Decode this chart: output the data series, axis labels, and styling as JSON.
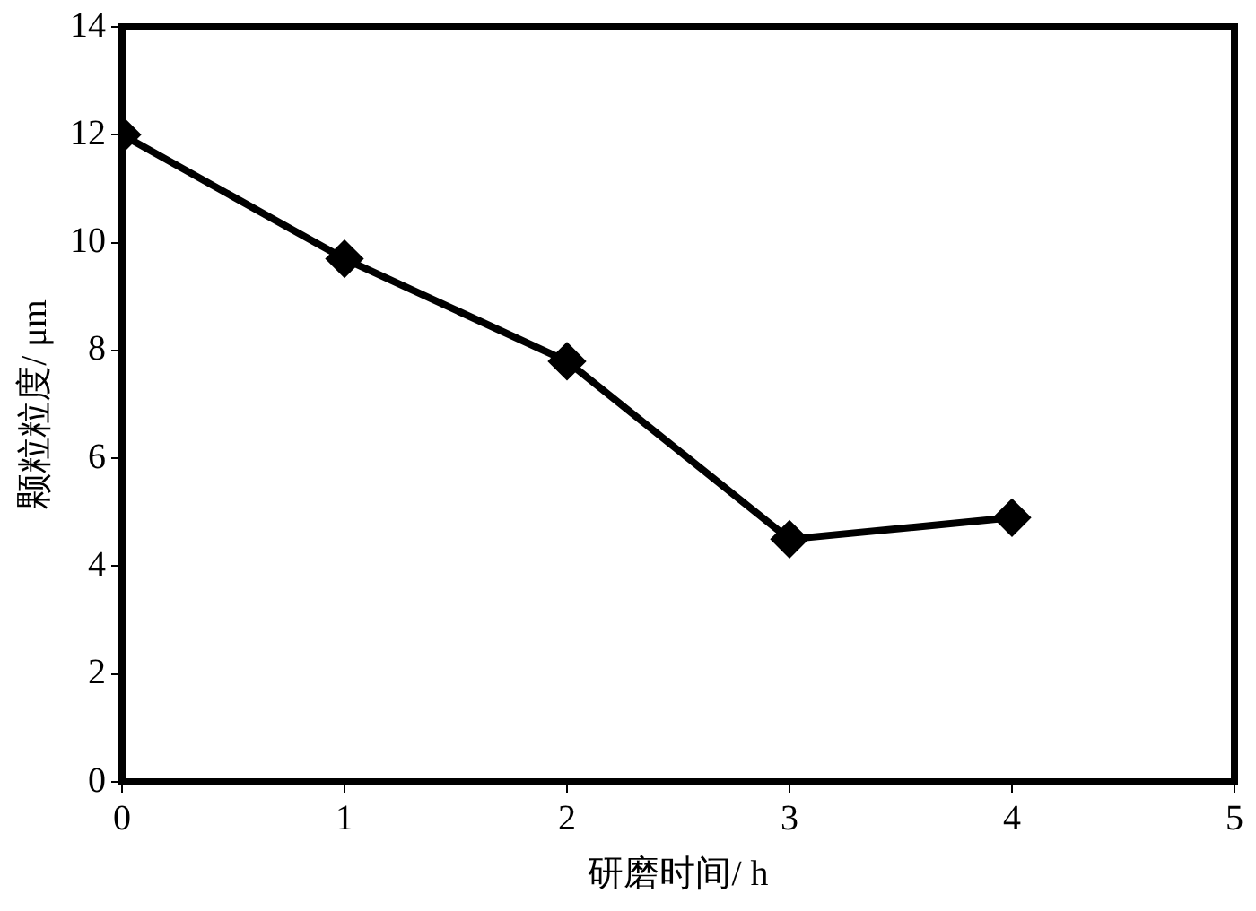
{
  "chart_data": {
    "type": "line",
    "xlabel": "研磨时间/ h",
    "ylabel": "颗粒粒度/ μm",
    "x": [
      0,
      1,
      2,
      3,
      4
    ],
    "series": [
      {
        "color": "#000000",
        "values": [
          12,
          9.7,
          7.8,
          4.5,
          4.9
        ]
      }
    ],
    "xlim": [
      0,
      5
    ],
    "xticks": [
      0,
      1,
      2,
      3,
      4,
      5
    ],
    "ylim": [
      0,
      14
    ],
    "yticks": [
      0,
      2,
      4,
      6,
      8,
      10,
      12,
      14
    ],
    "grid": false,
    "legend": false,
    "marker": "diamond",
    "line_style": "solid"
  }
}
